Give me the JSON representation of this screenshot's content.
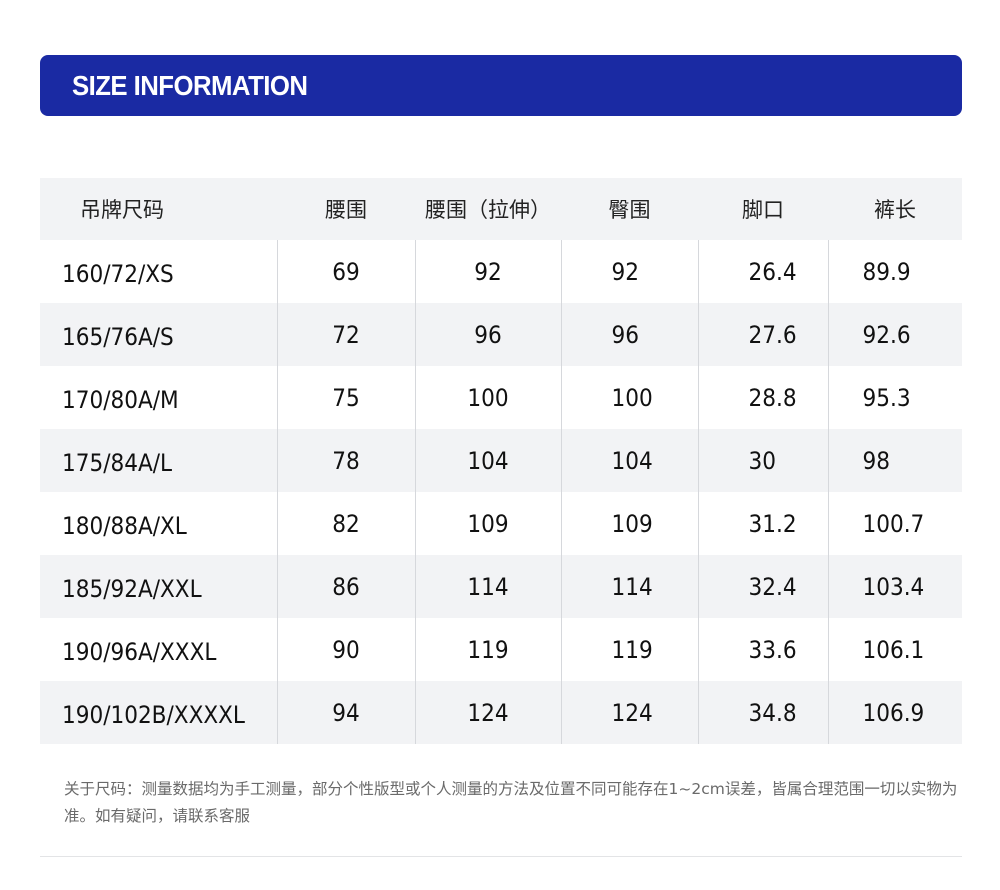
{
  "banner": {
    "title": "SIZE INFORMATION",
    "background_color": "#1a2aa3"
  },
  "size_table": {
    "headers": [
      "吊牌尺码",
      "腰围",
      "腰围（拉伸）",
      "臀围",
      "脚口",
      "裤长"
    ],
    "rows": [
      [
        "160/72/XS",
        "69",
        "92",
        "92",
        "26.4",
        "89.9"
      ],
      [
        "165/76A/S",
        "72",
        "96",
        "96",
        "27.6",
        "92.6"
      ],
      [
        "170/80A/M",
        "75",
        "100",
        "100",
        "28.8",
        "95.3"
      ],
      [
        "175/84A/L",
        "78",
        "104",
        "104",
        "30",
        "98"
      ],
      [
        "180/88A/XL",
        "82",
        "109",
        "109",
        "31.2",
        "100.7"
      ],
      [
        "185/92A/XXL",
        "86",
        "114",
        "114",
        "32.4",
        "103.4"
      ],
      [
        "190/96A/XXXL",
        "90",
        "119",
        "119",
        "33.6",
        "106.1"
      ],
      [
        "190/102B/XXXXL",
        "94",
        "124",
        "124",
        "34.8",
        "106.9"
      ]
    ],
    "stripe_color": "#f2f3f5"
  },
  "note": {
    "text": "关于尺码：测量数据均为手工测量，部分个性版型或个人测量的方法及位置不同可能存在1~2cm误差，皆属合理范围一切以实物为准。如有疑问，请联系客服"
  }
}
